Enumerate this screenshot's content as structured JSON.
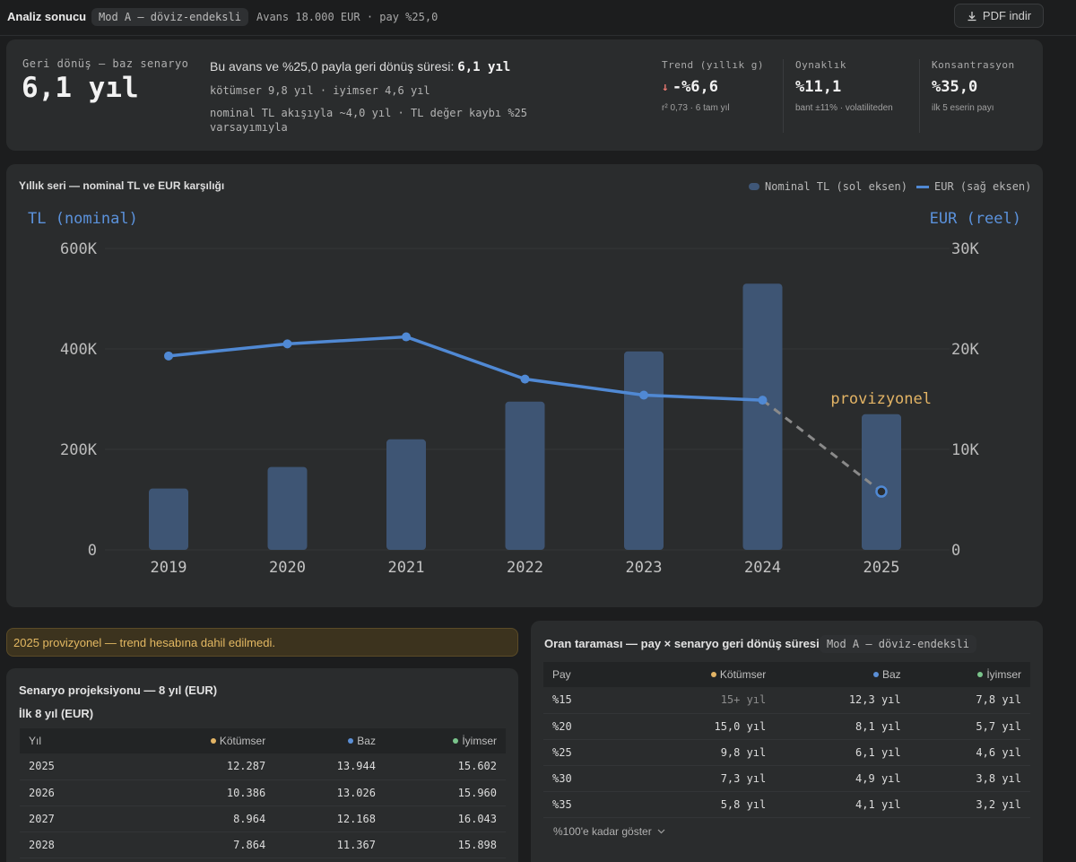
{
  "topbar": {
    "title": "Analiz sonucu",
    "mode": "Mod A — döviz-endeksli",
    "subtitle": "Avans 18.000 EUR · pay %25,0",
    "pdf_label": "PDF indir",
    "pdf_icon": "download-icon"
  },
  "summary": {
    "label": "Geri dönüş — baz senaryo",
    "value": "6,1 yıl",
    "line1_prefix": "Bu avans ve %25,0 payla geri dönüş süresi: ",
    "line1_value": "6,1 yıl",
    "line2": "kötümser 9,8 yıl · iyimser 4,6 yıl",
    "line3": "nominal TL akışıyla ~4,0 yıl · TL değer kaybı %25 varsayımıyla",
    "kpis": [
      {
        "label": "Trend (yıllık g)",
        "arrow": "↓",
        "value": "-%6,6",
        "note": "r² 0,73 · 6 tam yıl"
      },
      {
        "label": "Oynaklık",
        "value": "%11,1",
        "note": "bant ±11% · volatiliteden"
      },
      {
        "label": "Konsantrasyon",
        "value": "%35,0",
        "note": "ilk 5 eserin payı"
      }
    ]
  },
  "chart_section": {
    "title": "Yıllık seri — nominal TL ve EUR karşılığı",
    "legend_bar": "Nominal TL (sol eksen)",
    "legend_line": "EUR (sağ eksen)"
  },
  "chart_data": {
    "type": "bar",
    "categories": [
      "2019",
      "2020",
      "2021",
      "2022",
      "2023",
      "2024",
      "2025"
    ],
    "series": [
      {
        "name": "Nominal TL (sol eksen)",
        "axis": "left",
        "values": [
          122000,
          165000,
          220000,
          295000,
          395000,
          530000,
          270000
        ]
      },
      {
        "name": "EUR (sağ eksen)",
        "axis": "right",
        "type": "line",
        "values": [
          19300,
          20500,
          21200,
          17000,
          15400,
          14900,
          5800
        ]
      }
    ],
    "provisional_category": "2025",
    "annotation": "provizyonel",
    "ylabel_left": "TL (nominal)",
    "ylabel_right": "EUR (reel)",
    "ylim_left": [
      0,
      600000
    ],
    "ylim_right": [
      0,
      30000
    ],
    "yticks_left": [
      "0",
      "200K",
      "400K",
      "600K"
    ],
    "yticks_right": [
      "0",
      "10K",
      "20K",
      "30K"
    ],
    "grid": true,
    "legend_position": "top-right",
    "colors": {
      "bar": "#3e5574",
      "line": "#5089d4",
      "provisional": "#8a8a8a",
      "annotation": "#e3b465"
    }
  },
  "notice": "2025 provizyonel — trend hesabına dahil edilmedi.",
  "scenario": {
    "title": "Senaryo projeksiyonu — 8 yıl (EUR)",
    "subtitle": "İlk 8 yıl (EUR)",
    "headers": [
      "Yıl",
      "Kötümser",
      "Baz",
      "İyimser"
    ],
    "rows": [
      [
        "2025",
        "12.287",
        "13.944",
        "15.602"
      ],
      [
        "2026",
        "10.386",
        "13.026",
        "15.960"
      ],
      [
        "2027",
        "8.964",
        "12.168",
        "16.043"
      ],
      [
        "2028",
        "7.864",
        "11.367",
        "15.898"
      ]
    ]
  },
  "ratio": {
    "title": "Oran taraması — pay × senaryo geri dönüş süresi",
    "mode": "Mod A — döviz-endeksli",
    "headers": [
      "Pay",
      "Kötümser",
      "Baz",
      "İyimser"
    ],
    "rows": [
      [
        "%15",
        "15+ yıl",
        "12,3 yıl",
        "7,8 yıl"
      ],
      [
        "%20",
        "15,0 yıl",
        "8,1 yıl",
        "5,7 yıl"
      ],
      [
        "%25",
        "9,8 yıl",
        "6,1 yıl",
        "4,6 yıl"
      ],
      [
        "%30",
        "7,3 yıl",
        "4,9 yıl",
        "3,8 yıl"
      ],
      [
        "%35",
        "5,8 yıl",
        "4,1 yıl",
        "3,2 yıl"
      ]
    ],
    "show_more": "%100'e kadar göster"
  },
  "scenario_colors": {
    "pessimist": "#e3b465",
    "base": "#5b8fd6",
    "optimist": "#7ac48b"
  }
}
